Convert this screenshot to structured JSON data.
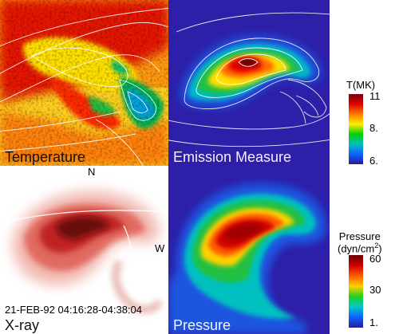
{
  "panels": {
    "temperature": {
      "label": "Temperature"
    },
    "emission_measure": {
      "label": "Emission Measure"
    },
    "xray": {
      "label": "X-ray",
      "north_label": "N",
      "west_label": "W",
      "time_range": "21-FEB-92 04:16:28-04:38:04"
    },
    "pressure": {
      "label": "Pressure"
    }
  },
  "colorbars": {
    "temperature": {
      "title": "T(MK)",
      "ticks": [
        "11",
        "8.",
        "6."
      ],
      "colors": [
        "#7a0010",
        "#e00000",
        "#ff7a00",
        "#ffee00",
        "#00d000",
        "#00c0c0",
        "#1060ff",
        "#2a1a9a"
      ]
    },
    "pressure": {
      "title_line1": "Pressure",
      "title_line2_base": "(dyn/cm",
      "title_line2_sup": "2",
      "title_line2_end": ")",
      "ticks": [
        "60",
        "30",
        "1."
      ],
      "colors": [
        "#6a0000",
        "#d00000",
        "#ff5a00",
        "#ffd000",
        "#20d020",
        "#00c8c8",
        "#1060ff",
        "#2a1a9a"
      ]
    }
  },
  "colors": {
    "background_blue": "#2d1fa8",
    "xray_red": "#c00000",
    "contour": "#ffffff"
  }
}
